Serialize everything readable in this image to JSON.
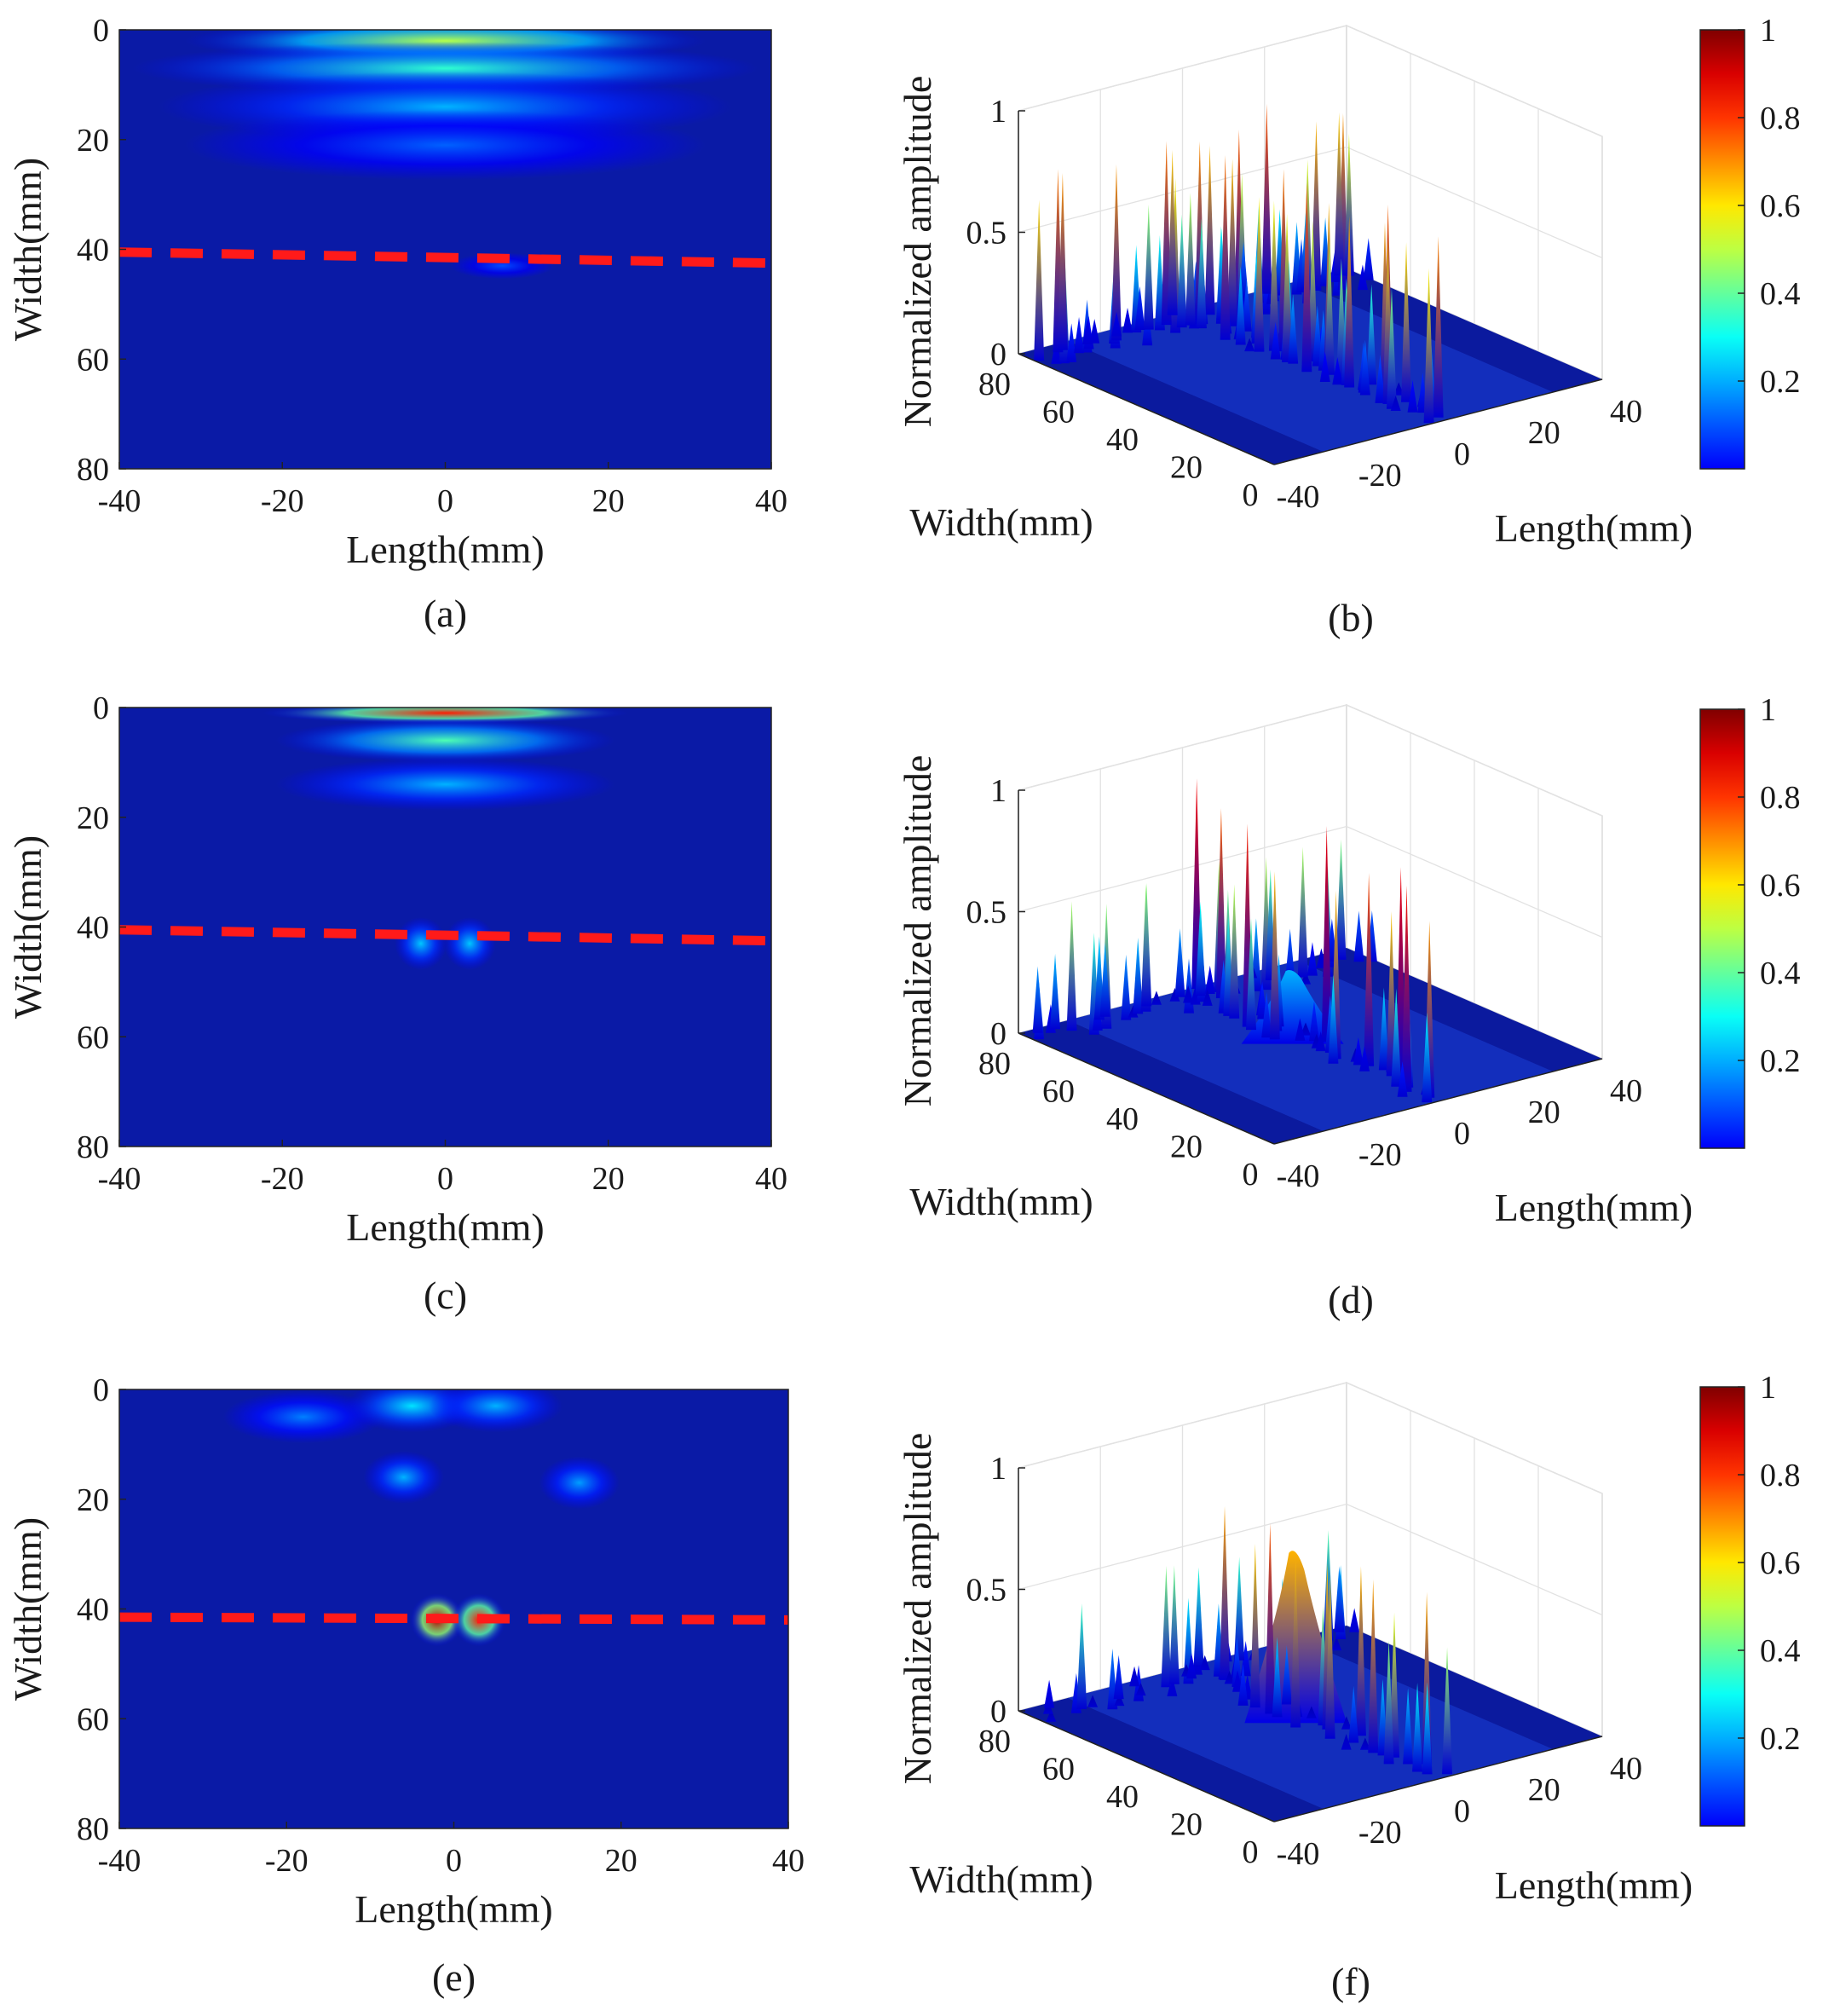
{
  "chart_data": [
    {
      "type": "heatmap",
      "caption": "(a)",
      "xlabel": "Length(mm)",
      "ylabel": "Width(mm)",
      "xlim": [
        -40,
        40
      ],
      "ylim": [
        80,
        0
      ],
      "xticks": [
        "-40",
        "-20",
        "0",
        "20",
        "40"
      ],
      "yticks": [
        "0",
        "20",
        "40",
        "60",
        "80"
      ],
      "dashed_line": {
        "width_at_x_min": 40.5,
        "width_at_x_max": 42.5,
        "color": "#ff1a1a"
      },
      "peaks": [
        {
          "length": 0,
          "width": 2,
          "amplitude": 0.55,
          "spread_length": 20,
          "spread_width": 2.5
        },
        {
          "length": 0,
          "width": 7,
          "amplitude": 0.42,
          "spread_length": 24,
          "spread_width": 3
        },
        {
          "length": 0,
          "width": 14,
          "amplitude": 0.3,
          "spread_length": 22,
          "spread_width": 4
        },
        {
          "length": 0,
          "width": 21,
          "amplitude": 0.22,
          "spread_length": 20,
          "spread_width": 4
        },
        {
          "length": 7,
          "width": 43,
          "amplitude": 0.2,
          "spread_length": 4,
          "spread_width": 1.5
        }
      ]
    },
    {
      "type": "surface3d",
      "caption": "(b)",
      "zlabel": "Normalized amplitude",
      "width_label": "Width(mm)",
      "length_label": "Length(mm)",
      "zlim": [
        0,
        1
      ],
      "zticks": [
        "0",
        "0.5",
        "1"
      ],
      "width_ticks": [
        "0",
        "20",
        "40",
        "60",
        "80"
      ],
      "length_ticks": [
        "-40",
        "-20",
        "0",
        "20",
        "40"
      ],
      "colorbar_ticks": [
        "0.2",
        "0.4",
        "0.6",
        "0.8",
        "1"
      ],
      "slice_left": {
        "baseline": 0.1,
        "spike_max": 0.8,
        "spikes": 55,
        "seed": 11
      },
      "slice_right": {
        "baseline": 0.05,
        "spike_max": 0.78,
        "spikes": 60,
        "seed": 23
      },
      "mounds": []
    },
    {
      "type": "heatmap",
      "caption": "(c)",
      "xlabel": "Length(mm)",
      "ylabel": "Width(mm)",
      "xlim": [
        -40,
        40
      ],
      "ylim": [
        80,
        0
      ],
      "xticks": [
        "-40",
        "-20",
        "0",
        "20",
        "40"
      ],
      "yticks": [
        "0",
        "20",
        "40",
        "60",
        "80"
      ],
      "dashed_line": {
        "width_at_x_min": 40.5,
        "width_at_x_max": 42.5,
        "color": "#ff1a1a"
      },
      "peaks": [
        {
          "length": 0,
          "width": 1,
          "amplitude": 0.85,
          "spread_length": 14,
          "spread_width": 1.2
        },
        {
          "length": 0,
          "width": 6,
          "amplitude": 0.45,
          "spread_length": 13,
          "spread_width": 2.5
        },
        {
          "length": 0,
          "width": 14,
          "amplitude": 0.3,
          "spread_length": 13,
          "spread_width": 3
        },
        {
          "length": -3,
          "width": 43,
          "amplitude": 0.32,
          "spread_length": 2,
          "spread_width": 3
        },
        {
          "length": 3,
          "width": 43,
          "amplitude": 0.32,
          "spread_length": 2,
          "spread_width": 3
        }
      ]
    },
    {
      "type": "surface3d",
      "caption": "(d)",
      "zlabel": "Normalized amplitude",
      "width_label": "Width(mm)",
      "length_label": "Length(mm)",
      "zlim": [
        0,
        1
      ],
      "zticks": [
        "0",
        "0.5",
        "1"
      ],
      "width_ticks": [
        "0",
        "20",
        "40",
        "60",
        "80"
      ],
      "length_ticks": [
        "-40",
        "-20",
        "0",
        "20",
        "40"
      ],
      "colorbar_ticks": [
        "0.2",
        "0.4",
        "0.6",
        "0.8",
        "1"
      ],
      "slice_left": {
        "baseline": 0.05,
        "spike_max": 0.55,
        "spikes": 40,
        "seed": 37
      },
      "slice_right": {
        "baseline": 0.05,
        "spike_max": 0.9,
        "spikes": 45,
        "seed": 41
      },
      "mounds": [
        {
          "length": -2,
          "width": 43,
          "amplitude": 0.3
        }
      ]
    },
    {
      "type": "heatmap",
      "caption": "(e)",
      "xlabel": "Length(mm)",
      "ylabel": "Width(mm)",
      "xlim": [
        -40,
        40
      ],
      "ylim": [
        80,
        0
      ],
      "xticks": [
        "-40",
        "-20",
        "0",
        "20",
        "40"
      ],
      "yticks": [
        "0",
        "20",
        "40",
        "60",
        "80"
      ],
      "dashed_line": {
        "width_at_x_min": 41.5,
        "width_at_x_max": 42,
        "color": "#ff1a1a"
      },
      "peaks": [
        {
          "length": -18,
          "width": 5,
          "amplitude": 0.25,
          "spread_length": 6,
          "spread_width": 3
        },
        {
          "length": -5,
          "width": 3,
          "amplitude": 0.35,
          "spread_length": 5,
          "spread_width": 3
        },
        {
          "length": 5,
          "width": 3,
          "amplitude": 0.3,
          "spread_length": 5,
          "spread_width": 3
        },
        {
          "length": -6,
          "width": 16,
          "amplitude": 0.3,
          "spread_length": 3,
          "spread_width": 3
        },
        {
          "length": 15,
          "width": 17,
          "amplitude": 0.28,
          "spread_length": 3,
          "spread_width": 3
        },
        {
          "length": -2,
          "width": 42,
          "amplitude": 0.95,
          "spread_length": 2,
          "spread_width": 3
        },
        {
          "length": 3,
          "width": 42,
          "amplitude": 0.85,
          "spread_length": 2,
          "spread_width": 3
        }
      ]
    },
    {
      "type": "surface3d",
      "caption": "(f)",
      "zlabel": "Normalized amplitude",
      "width_label": "Width(mm)",
      "length_label": "Length(mm)",
      "zlim": [
        0,
        1
      ],
      "zticks": [
        "0",
        "0.5",
        "1"
      ],
      "width_ticks": [
        "0",
        "20",
        "40",
        "60",
        "80"
      ],
      "length_ticks": [
        "-40",
        "-20",
        "0",
        "20",
        "40"
      ],
      "colorbar_ticks": [
        "0.2",
        "0.4",
        "0.6",
        "0.8",
        "1"
      ],
      "slice_left": {
        "baseline": 0.05,
        "spike_max": 0.5,
        "spikes": 35,
        "seed": 53
      },
      "slice_right": {
        "baseline": 0.05,
        "spike_max": 0.8,
        "spikes": 35,
        "seed": 67
      },
      "mounds": [
        {
          "length": -2,
          "width": 42,
          "amplitude": 0.7
        }
      ]
    }
  ]
}
